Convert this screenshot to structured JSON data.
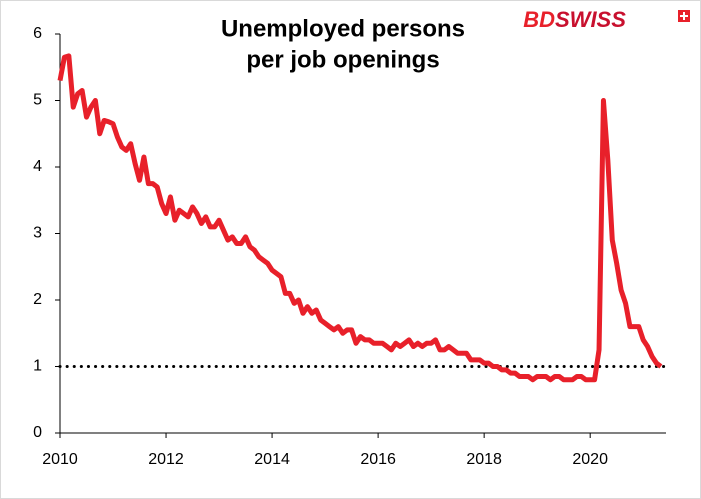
{
  "chart_data": {
    "type": "line",
    "title": [
      "Unemployed persons",
      "per job openings"
    ],
    "logo": [
      "BD",
      "SWISS"
    ],
    "color": "#e8202a",
    "x": [
      2010,
      2010.083,
      2010.167,
      2010.25,
      2010.333,
      2010.417,
      2010.5,
      2010.583,
      2010.667,
      2010.75,
      2010.833,
      2010.917,
      2011,
      2011.083,
      2011.167,
      2011.25,
      2011.333,
      2011.417,
      2011.5,
      2011.583,
      2011.667,
      2011.75,
      2011.833,
      2011.917,
      2012,
      2012.083,
      2012.167,
      2012.25,
      2012.333,
      2012.417,
      2012.5,
      2012.583,
      2012.667,
      2012.75,
      2012.833,
      2012.917,
      2013,
      2013.083,
      2013.167,
      2013.25,
      2013.333,
      2013.417,
      2013.5,
      2013.583,
      2013.667,
      2013.75,
      2013.833,
      2013.917,
      2014,
      2014.083,
      2014.167,
      2014.25,
      2014.333,
      2014.417,
      2014.5,
      2014.583,
      2014.667,
      2014.75,
      2014.833,
      2014.917,
      2015,
      2015.083,
      2015.167,
      2015.25,
      2015.333,
      2015.417,
      2015.5,
      2015.583,
      2015.667,
      2015.75,
      2015.833,
      2015.917,
      2016,
      2016.083,
      2016.167,
      2016.25,
      2016.333,
      2016.417,
      2016.5,
      2016.583,
      2016.667,
      2016.75,
      2016.833,
      2016.917,
      2017,
      2017.083,
      2017.167,
      2017.25,
      2017.333,
      2017.417,
      2017.5,
      2017.583,
      2017.667,
      2017.75,
      2017.833,
      2017.917,
      2018,
      2018.083,
      2018.167,
      2018.25,
      2018.333,
      2018.417,
      2018.5,
      2018.583,
      2018.667,
      2018.75,
      2018.833,
      2018.917,
      2019,
      2019.083,
      2019.167,
      2019.25,
      2019.333,
      2019.417,
      2019.5,
      2019.583,
      2019.667,
      2019.75,
      2019.833,
      2019.917,
      2020,
      2020.083,
      2020.167,
      2020.25,
      2020.333,
      2020.417,
      2020.5,
      2020.583,
      2020.667,
      2020.75,
      2020.833,
      2020.917,
      2021,
      2021.083,
      2021.167,
      2021.25,
      2021.333
    ],
    "values": [
      5.3,
      5.65,
      5.67,
      4.9,
      5.1,
      5.15,
      4.75,
      4.9,
      5.0,
      4.5,
      4.7,
      4.68,
      4.65,
      4.45,
      4.3,
      4.25,
      4.35,
      4.05,
      3.8,
      4.15,
      3.75,
      3.75,
      3.7,
      3.45,
      3.3,
      3.55,
      3.2,
      3.35,
      3.3,
      3.25,
      3.4,
      3.3,
      3.15,
      3.25,
      3.1,
      3.1,
      3.2,
      3.05,
      2.9,
      2.95,
      2.85,
      2.85,
      2.95,
      2.8,
      2.75,
      2.65,
      2.6,
      2.55,
      2.45,
      2.4,
      2.35,
      2.1,
      2.1,
      1.95,
      2.0,
      1.8,
      1.9,
      1.8,
      1.85,
      1.7,
      1.65,
      1.6,
      1.55,
      1.6,
      1.5,
      1.55,
      1.55,
      1.35,
      1.45,
      1.4,
      1.4,
      1.35,
      1.35,
      1.35,
      1.3,
      1.25,
      1.35,
      1.3,
      1.35,
      1.4,
      1.3,
      1.35,
      1.3,
      1.35,
      1.35,
      1.4,
      1.25,
      1.25,
      1.3,
      1.25,
      1.2,
      1.2,
      1.2,
      1.1,
      1.1,
      1.1,
      1.05,
      1.05,
      1.0,
      1.0,
      0.95,
      0.95,
      0.9,
      0.9,
      0.85,
      0.85,
      0.85,
      0.8,
      0.85,
      0.85,
      0.85,
      0.8,
      0.85,
      0.85,
      0.8,
      0.8,
      0.8,
      0.85,
      0.85,
      0.8,
      0.8,
      0.8,
      1.25,
      5.0,
      4.1,
      2.9,
      2.55,
      2.15,
      1.95,
      1.6,
      1.6,
      1.6,
      1.4,
      1.3,
      1.15,
      1.05,
      1.0
    ],
    "reference_line": 1,
    "xlim": [
      2010,
      2021.43
    ],
    "xticks": [
      2010,
      2012,
      2014,
      2016,
      2018,
      2020
    ],
    "ylim": [
      0,
      6
    ],
    "yticks": [
      0,
      1,
      2,
      3,
      4,
      5,
      6
    ]
  }
}
